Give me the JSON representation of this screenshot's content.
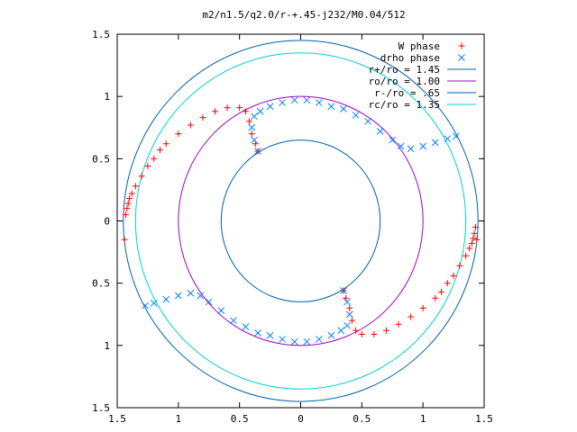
{
  "chart_data": {
    "type": "scatter",
    "title": "m2/n1.5/q2.0/r-+.45-j232/M0.04/512",
    "xlim": [
      -1.5,
      1.5
    ],
    "ylim": [
      -1.5,
      1.5
    ],
    "x_ticks": [
      {
        "value": -1.5,
        "label": "1.5"
      },
      {
        "value": -1.0,
        "label": "1"
      },
      {
        "value": -0.5,
        "label": "0.5"
      },
      {
        "value": 0.0,
        "label": "0"
      },
      {
        "value": 0.5,
        "label": "0.5"
      },
      {
        "value": 1.0,
        "label": "1"
      },
      {
        "value": 1.5,
        "label": "1.5"
      }
    ],
    "y_ticks": [
      {
        "value": 1.5,
        "label": "1.5"
      },
      {
        "value": 1.0,
        "label": "1"
      },
      {
        "value": 0.5,
        "label": "0.5"
      },
      {
        "value": 0.0,
        "label": "0"
      },
      {
        "value": -0.5,
        "label": "0.5"
      },
      {
        "value": -1.0,
        "label": "1"
      },
      {
        "value": -1.5,
        "label": "1.5"
      }
    ],
    "grid": false,
    "legend_position": "top-right",
    "series": [
      {
        "name": "W phase",
        "kind": "points",
        "marker": "plus",
        "color": "#ff0000",
        "points": [
          [
            -1.44,
            -0.15
          ],
          [
            -1.43,
            0.05
          ],
          [
            -1.42,
            0.1
          ],
          [
            -1.41,
            0.14
          ],
          [
            -1.4,
            0.18
          ],
          [
            -1.38,
            0.22
          ],
          [
            -1.35,
            0.28
          ],
          [
            -1.3,
            0.36
          ],
          [
            -1.25,
            0.44
          ],
          [
            -1.2,
            0.5
          ],
          [
            -1.15,
            0.57
          ],
          [
            -1.1,
            0.62
          ],
          [
            -1.0,
            0.7
          ],
          [
            -0.9,
            0.77
          ],
          [
            -0.8,
            0.83
          ],
          [
            -0.7,
            0.88
          ],
          [
            -0.6,
            0.91
          ],
          [
            -0.5,
            0.91
          ],
          [
            -0.45,
            0.88
          ],
          [
            -0.42,
            0.8
          ],
          [
            -0.4,
            0.7
          ],
          [
            -0.37,
            0.62
          ],
          [
            -0.35,
            0.56
          ],
          [
            1.44,
            -0.15
          ],
          [
            1.43,
            -0.05
          ],
          [
            1.42,
            -0.1
          ],
          [
            1.41,
            -0.14
          ],
          [
            1.4,
            -0.18
          ],
          [
            1.38,
            -0.22
          ],
          [
            1.35,
            -0.28
          ],
          [
            1.3,
            -0.36
          ],
          [
            1.25,
            -0.44
          ],
          [
            1.2,
            -0.5
          ],
          [
            1.15,
            -0.57
          ],
          [
            1.1,
            -0.62
          ],
          [
            1.0,
            -0.7
          ],
          [
            0.9,
            -0.77
          ],
          [
            0.8,
            -0.83
          ],
          [
            0.7,
            -0.88
          ],
          [
            0.6,
            -0.91
          ],
          [
            0.5,
            -0.91
          ],
          [
            0.45,
            -0.88
          ],
          [
            0.42,
            -0.8
          ],
          [
            0.4,
            -0.7
          ],
          [
            0.37,
            -0.62
          ],
          [
            0.35,
            -0.56
          ]
        ]
      },
      {
        "name": "drho phase",
        "kind": "points",
        "marker": "cross",
        "color": "#0080ff",
        "points": [
          [
            -0.35,
            0.56
          ],
          [
            -0.38,
            0.65
          ],
          [
            -0.4,
            0.75
          ],
          [
            -0.38,
            0.84
          ],
          [
            -0.33,
            0.88
          ],
          [
            -0.25,
            0.92
          ],
          [
            -0.15,
            0.95
          ],
          [
            -0.05,
            0.97
          ],
          [
            0.05,
            0.97
          ],
          [
            0.15,
            0.95
          ],
          [
            0.25,
            0.92
          ],
          [
            0.35,
            0.9
          ],
          [
            0.45,
            0.85
          ],
          [
            0.55,
            0.8
          ],
          [
            0.65,
            0.72
          ],
          [
            0.75,
            0.65
          ],
          [
            0.82,
            0.6
          ],
          [
            0.9,
            0.58
          ],
          [
            1.0,
            0.6
          ],
          [
            1.1,
            0.63
          ],
          [
            1.2,
            0.66
          ],
          [
            1.27,
            0.68
          ],
          [
            0.35,
            -0.56
          ],
          [
            0.38,
            -0.65
          ],
          [
            0.4,
            -0.75
          ],
          [
            0.38,
            -0.84
          ],
          [
            0.33,
            -0.88
          ],
          [
            0.25,
            -0.92
          ],
          [
            0.15,
            -0.95
          ],
          [
            0.05,
            -0.97
          ],
          [
            -0.05,
            -0.97
          ],
          [
            -0.15,
            -0.95
          ],
          [
            -0.25,
            -0.92
          ],
          [
            -0.35,
            -0.9
          ],
          [
            -0.45,
            -0.85
          ],
          [
            -0.55,
            -0.8
          ],
          [
            -0.65,
            -0.72
          ],
          [
            -0.75,
            -0.65
          ],
          [
            -0.82,
            -0.6
          ],
          [
            -0.9,
            -0.58
          ],
          [
            -1.0,
            -0.6
          ],
          [
            -1.1,
            -0.63
          ],
          [
            -1.2,
            -0.66
          ],
          [
            -1.27,
            -0.68
          ]
        ]
      },
      {
        "name": "r+/ro = 1.45",
        "kind": "circle",
        "radius": 1.45,
        "color": "#0060ad"
      },
      {
        "name": "ro/ro = 1.00",
        "kind": "circle",
        "radius": 1.0,
        "color": "#a000c0"
      },
      {
        "name": "r-/ro = .65",
        "kind": "circle",
        "radius": 0.65,
        "color": "#0060ad"
      },
      {
        "name": "rc/ro = 1.35",
        "kind": "circle",
        "radius": 1.35,
        "color": "#00d0d0"
      }
    ]
  }
}
